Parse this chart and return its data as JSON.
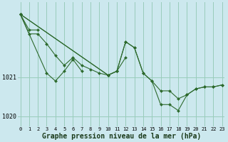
{
  "background_color": "#cce8ee",
  "grid_color": "#99ccbb",
  "line_color": "#2d6a2d",
  "marker_color": "#2d6a2d",
  "xlabel": "Graphe pression niveau de la mer (hPa)",
  "xlabel_fontsize": 7,
  "x_ticks": [
    0,
    1,
    2,
    3,
    4,
    5,
    6,
    7,
    8,
    9,
    10,
    11,
    12,
    13,
    14,
    15,
    16,
    17,
    18,
    19,
    20,
    21,
    22,
    23
  ],
  "series": [
    [
      1022.6,
      1022.2,
      1022.2,
      null,
      null,
      null,
      null,
      null,
      null,
      null,
      null,
      null,
      null,
      null,
      null,
      null,
      null,
      null,
      null,
      null,
      null,
      null,
      null,
      null
    ],
    [
      1022.6,
      1022.1,
      1022.1,
      1021.85,
      1021.55,
      1021.3,
      1021.5,
      1021.3,
      1021.2,
      1021.1,
      1021.05,
      1021.15,
      1021.5,
      null,
      null,
      null,
      null,
      null,
      null,
      null,
      null,
      null,
      null,
      null
    ],
    [
      1022.6,
      null,
      null,
      1021.1,
      1020.9,
      1021.15,
      1021.45,
      1021.15,
      null,
      null,
      null,
      null,
      null,
      null,
      null,
      null,
      null,
      null,
      null,
      null,
      null,
      null,
      null,
      null
    ],
    [
      1022.6,
      null,
      null,
      null,
      null,
      null,
      null,
      null,
      null,
      null,
      1021.05,
      1021.15,
      1021.9,
      1021.75,
      1021.1,
      1020.9,
      1020.65,
      1020.65,
      1020.45,
      1020.55,
      1020.7,
      1020.75,
      1020.75,
      1020.8
    ],
    [
      1022.6,
      null,
      null,
      null,
      null,
      null,
      null,
      null,
      null,
      null,
      1021.05,
      1021.15,
      1021.9,
      1021.75,
      1021.1,
      1020.9,
      1020.3,
      1020.3,
      1020.15,
      1020.55,
      1020.7,
      1020.75,
      1020.75,
      1020.8
    ]
  ],
  "ylim": [
    1019.75,
    1022.9
  ],
  "xlim": [
    -0.3,
    23.3
  ],
  "yticks": [
    1020,
    1021
  ],
  "ytick_labels": [
    "1020",
    "1021"
  ]
}
